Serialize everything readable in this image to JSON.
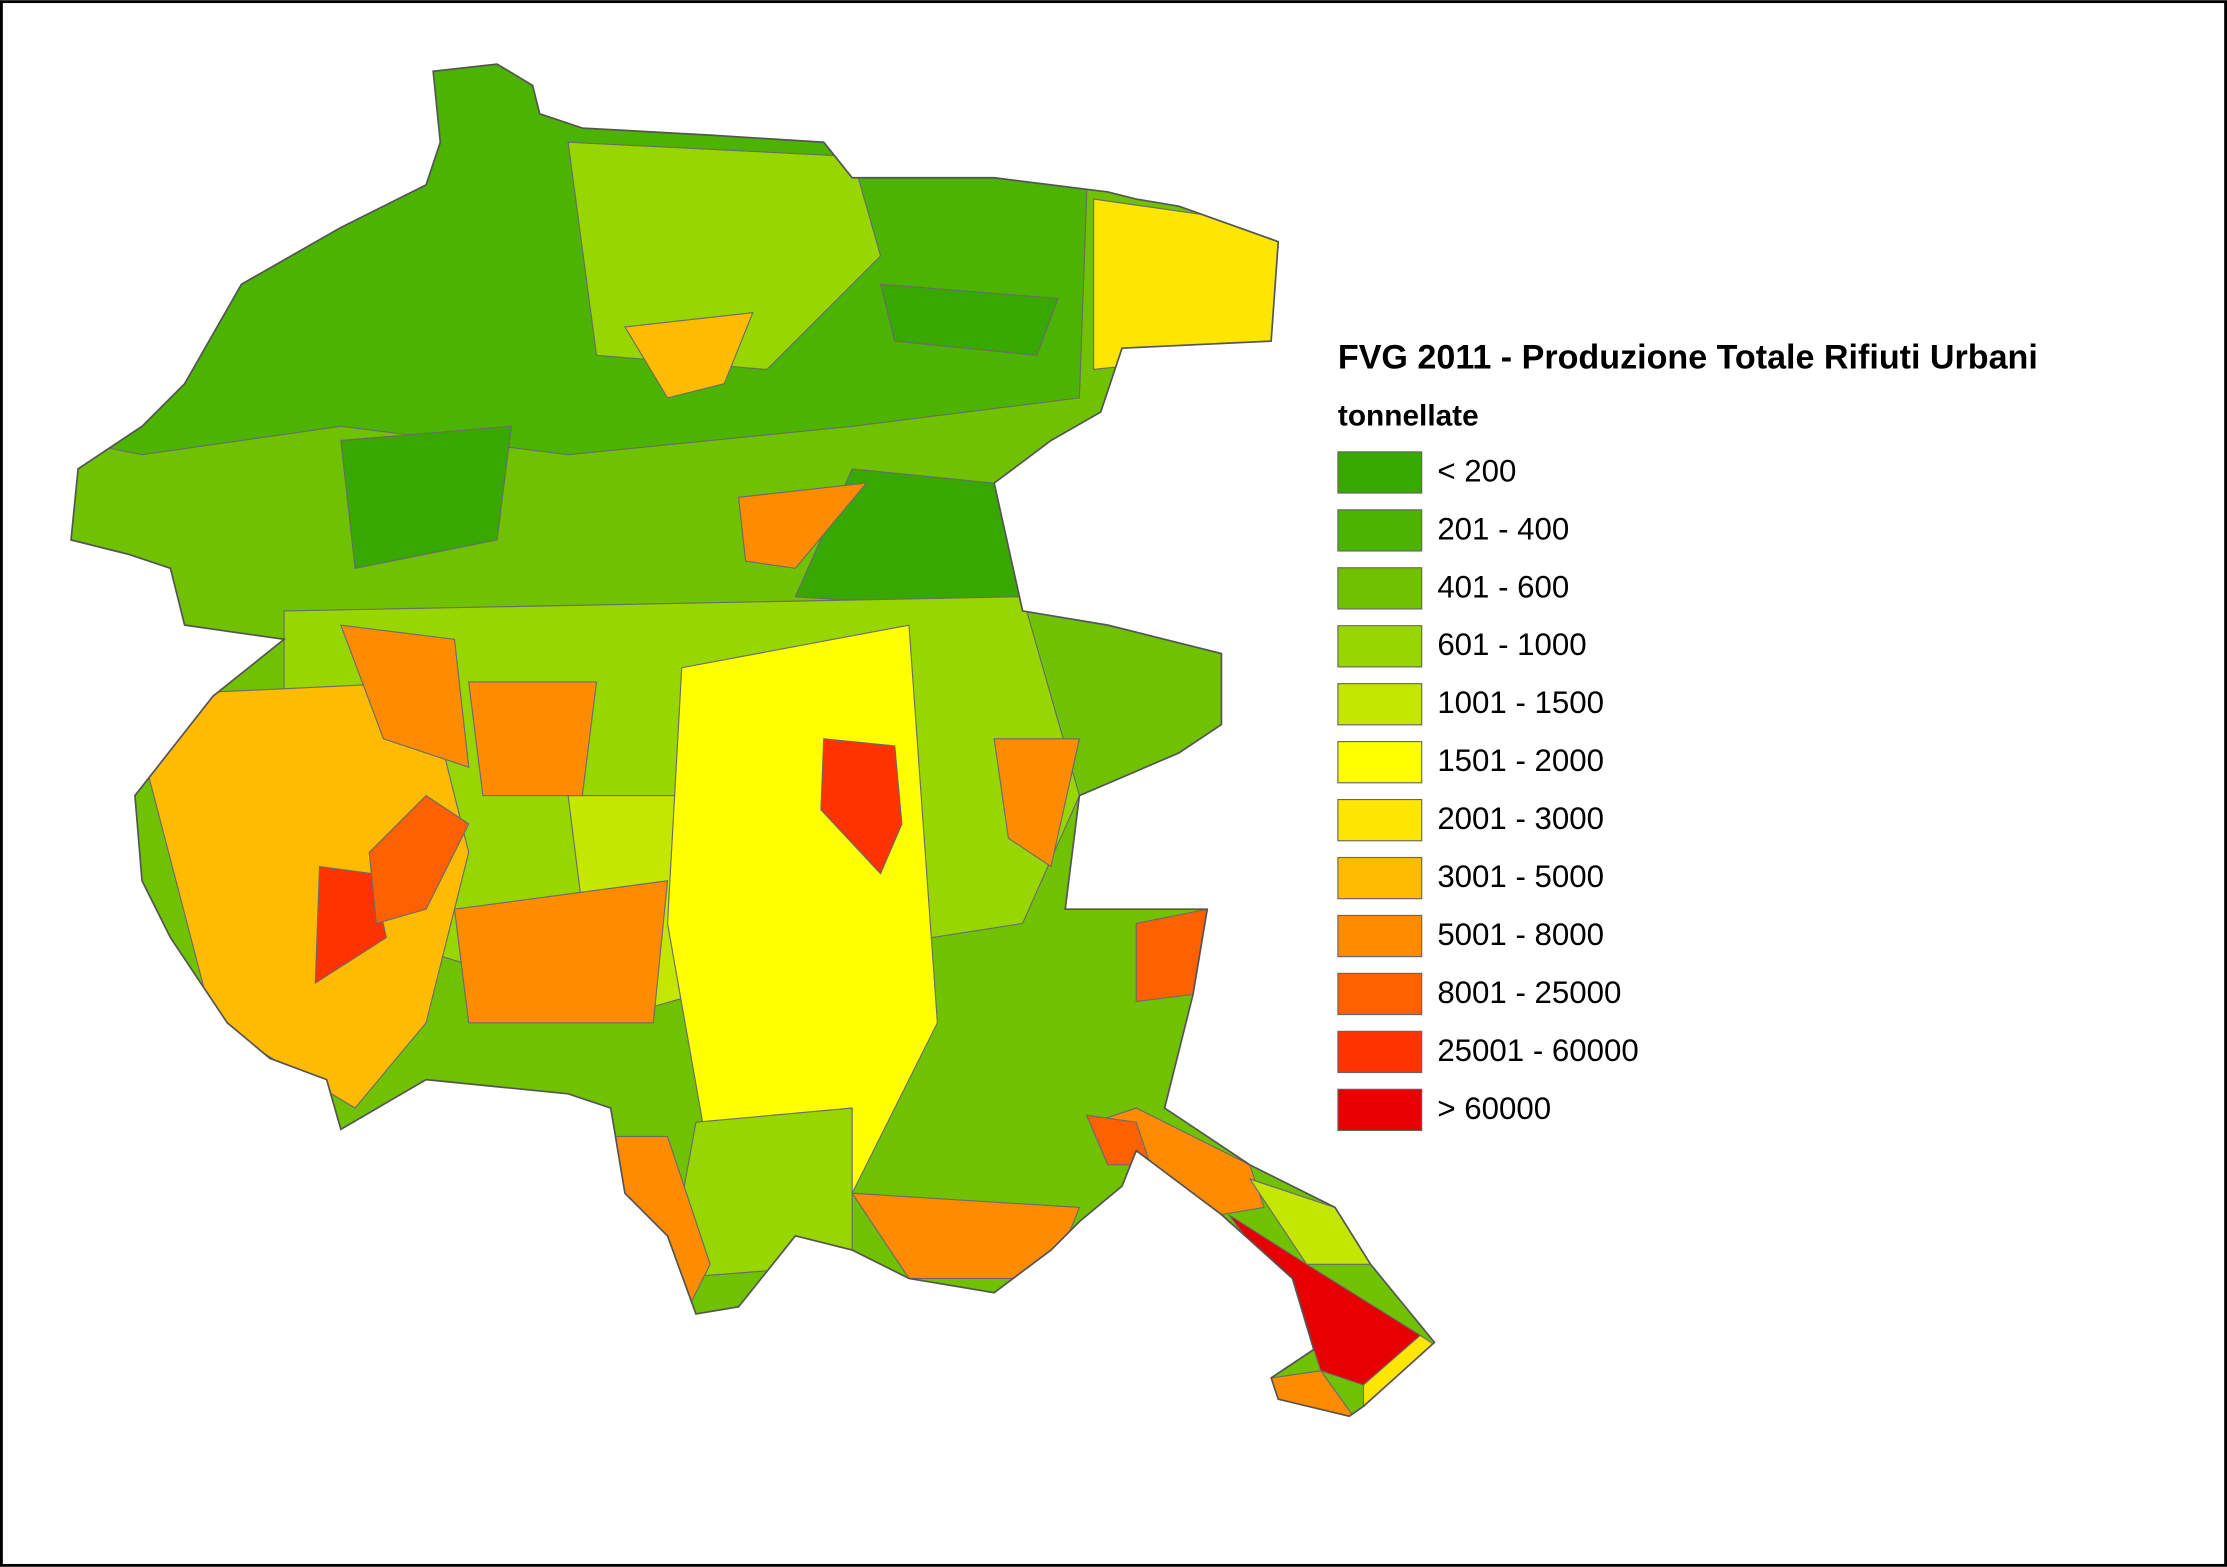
{
  "map": {
    "title": "FVG 2011 - Produzione Totale Rifiuti Urbani",
    "subtitle": "tonnellate",
    "legend": [
      {
        "label": "< 200",
        "color": "#38a800"
      },
      {
        "label": "201 - 400",
        "color": "#4cb300"
      },
      {
        "label": "401 - 600",
        "color": "#70c200"
      },
      {
        "label": "601 - 1000",
        "color": "#98d600"
      },
      {
        "label": "1001 - 1500",
        "color": "#c4e600"
      },
      {
        "label": "1501 - 2000",
        "color": "#ffff00"
      },
      {
        "label": "2001 - 3000",
        "color": "#ffe600"
      },
      {
        "label": "3001 - 5000",
        "color": "#ffbb00"
      },
      {
        "label": "5001 - 8000",
        "color": "#ff8c00"
      },
      {
        "label": "8001 - 25000",
        "color": "#ff6000"
      },
      {
        "label": "25001 - 60000",
        "color": "#ff3300"
      },
      {
        "label": "> 60000",
        "color": "#e60000"
      }
    ]
  }
}
